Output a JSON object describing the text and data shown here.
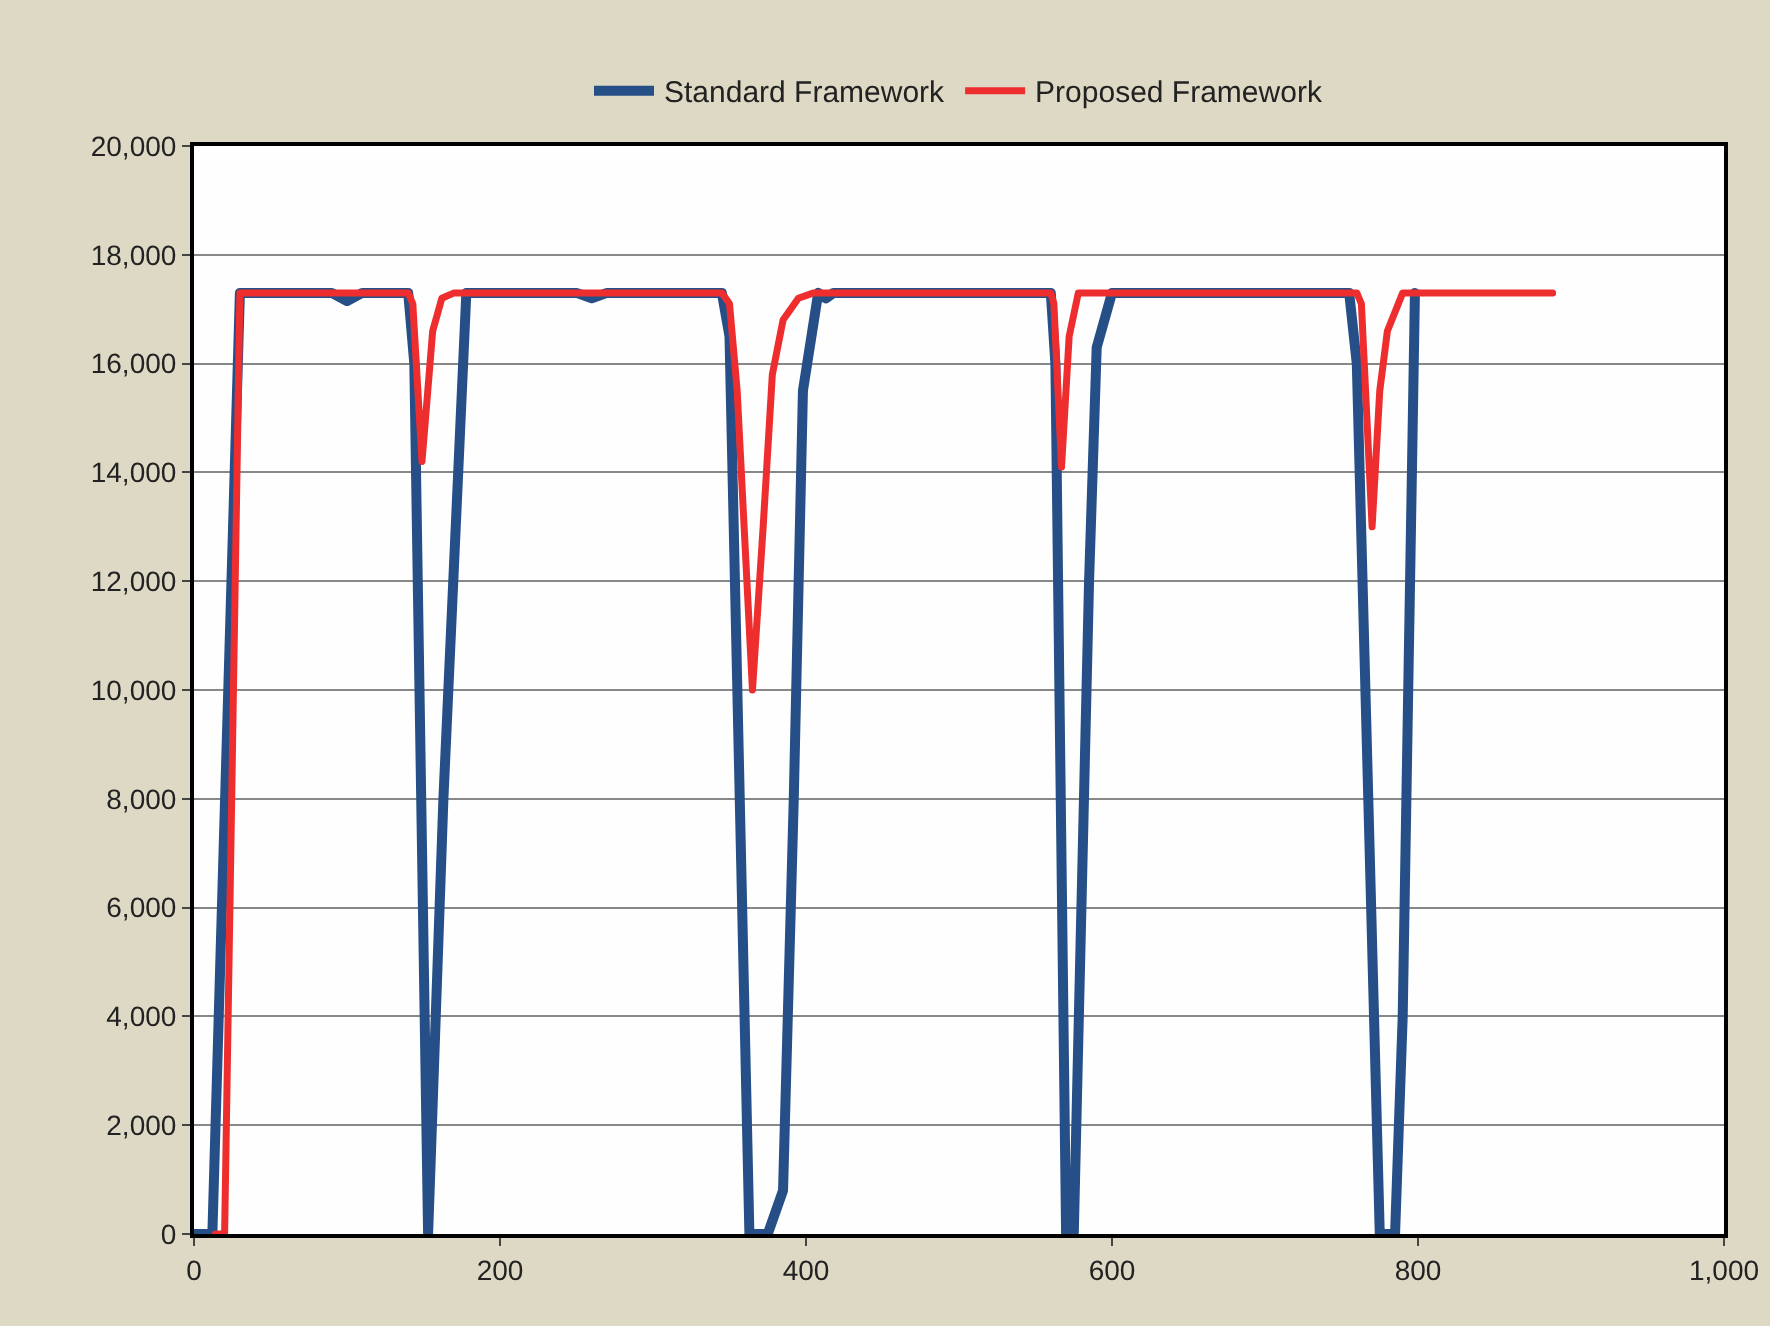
{
  "chart_data": {
    "type": "line",
    "xlim": [
      0,
      1000
    ],
    "xticks": [
      0,
      200,
      400,
      600,
      800,
      {
        "value": 1000,
        "label": "1,000"
      }
    ],
    "ylim": [
      0,
      20000
    ],
    "yticks": [
      0,
      {
        "value": 2000,
        "label": "2,000"
      },
      {
        "value": 4000,
        "label": "4,000"
      },
      {
        "value": 6000,
        "label": "6,000"
      },
      {
        "value": 8000,
        "label": "8,000"
      },
      {
        "value": 10000,
        "label": "10,000"
      },
      {
        "value": 12000,
        "label": "12,000"
      },
      {
        "value": 14000,
        "label": "14,000"
      },
      {
        "value": 16000,
        "label": "16,000"
      },
      {
        "value": 18000,
        "label": "18,000"
      },
      {
        "value": 20000,
        "label": "20,000"
      }
    ],
    "grid": "y",
    "legend": "top",
    "marker": "none",
    "line_style": "solid",
    "series": [
      {
        "name": "Standard Framework",
        "color": "#254f86",
        "x": [
          0,
          12,
          30,
          35,
          90,
          100,
          110,
          140,
          144,
          153,
          163,
          178,
          182,
          250,
          260,
          270,
          345,
          350,
          363,
          375,
          385,
          392,
          398,
          408,
          413,
          418,
          560,
          563,
          570,
          575,
          585,
          590,
          600,
          755,
          760,
          775,
          785,
          790,
          798
        ],
        "values": [
          0,
          0,
          17300,
          17300,
          17300,
          17150,
          17300,
          17300,
          16000,
          0,
          8000,
          17300,
          17300,
          17300,
          17200,
          17300,
          17300,
          16500,
          0,
          0,
          800,
          8000,
          15500,
          17300,
          17200,
          17300,
          17300,
          16000,
          0,
          0,
          12000,
          16300,
          17300,
          17300,
          16000,
          0,
          0,
          4000,
          17300
        ]
      },
      {
        "name": "Proposed Framework",
        "color": "#ee2e2e",
        "x": [
          14,
          20,
          30,
          35,
          140,
          143,
          149,
          156,
          162,
          170,
          175,
          345,
          350,
          355,
          365,
          372,
          378,
          385,
          395,
          405,
          560,
          562,
          567,
          572,
          578,
          585,
          760,
          763,
          770,
          775,
          780,
          790,
          795,
          888
        ],
        "values": [
          0,
          0,
          17300,
          17300,
          17300,
          17100,
          14200,
          16600,
          17200,
          17300,
          17300,
          17300,
          17100,
          15500,
          10000,
          13000,
          15800,
          16800,
          17200,
          17300,
          17300,
          17100,
          14100,
          16500,
          17300,
          17300,
          17300,
          17100,
          13000,
          15500,
          16600,
          17300,
          17300,
          17300
        ]
      }
    ]
  }
}
